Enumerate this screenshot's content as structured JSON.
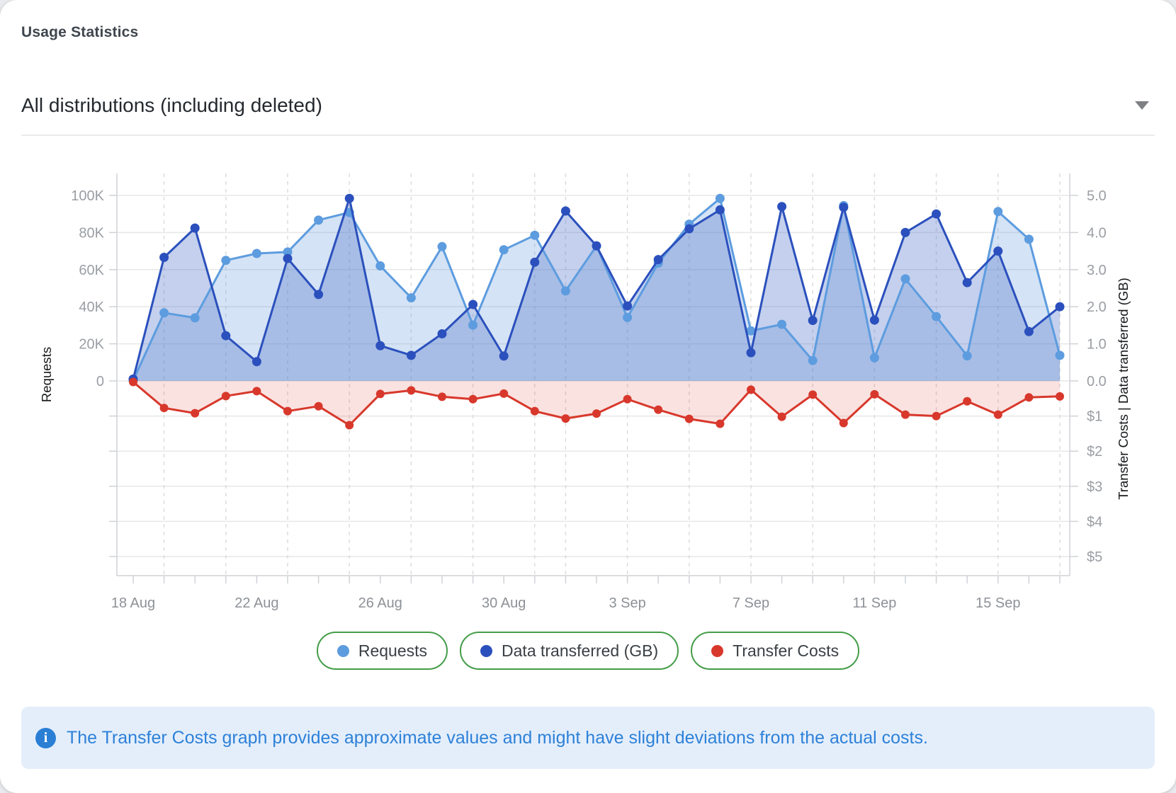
{
  "header": {
    "title": "Usage Statistics",
    "distribution_filter": {
      "value": "All distributions (including deleted)"
    }
  },
  "chart_data": {
    "type": "line",
    "x": [
      "18 Aug",
      "19 Aug",
      "20 Aug",
      "21 Aug",
      "22 Aug",
      "23 Aug",
      "24 Aug",
      "25 Aug",
      "26 Aug",
      "27 Aug",
      "28 Aug",
      "29 Aug",
      "30 Aug",
      "31 Aug",
      "1 Sep",
      "2 Sep",
      "3 Sep",
      "4 Sep",
      "5 Sep",
      "6 Sep",
      "7 Sep",
      "8 Sep",
      "9 Sep",
      "10 Sep",
      "11 Sep",
      "12 Sep",
      "13 Sep",
      "14 Sep",
      "15 Sep",
      "16 Sep",
      "17 Sep"
    ],
    "x_tick_labels": [
      "18 Aug",
      "22 Aug",
      "26 Aug",
      "30 Aug",
      "3 Sep",
      "7 Sep",
      "11 Sep",
      "15 Sep"
    ],
    "series": [
      {
        "name": "Requests",
        "axis": "left",
        "color": "#5d9cdf",
        "fill": "rgba(100,155,220,0.28)",
        "values": [
          300,
          36700,
          34000,
          65000,
          68700,
          69500,
          86700,
          90800,
          62000,
          44800,
          72400,
          30100,
          70700,
          78500,
          48500,
          72800,
          34200,
          63500,
          84500,
          98400,
          27000,
          30500,
          11000,
          94500,
          12500,
          55000,
          34700,
          13500,
          91300,
          76400,
          13800
        ]
      },
      {
        "name": "Data transferred (GB)",
        "axis": "right_gb",
        "color": "#2b50bd",
        "fill": "rgba(70,110,200,0.32)",
        "values": [
          0.05,
          3.33,
          4.12,
          1.22,
          0.52,
          3.3,
          2.33,
          4.92,
          0.95,
          0.69,
          1.27,
          2.06,
          0.67,
          3.2,
          4.58,
          3.64,
          2.02,
          3.27,
          4.1,
          4.61,
          0.76,
          4.7,
          1.63,
          4.68,
          1.64,
          4.0,
          4.5,
          2.65,
          3.5,
          1.33,
          2.0
        ]
      },
      {
        "name": "Transfer Costs",
        "axis": "right_cost",
        "color": "#d8382c",
        "fill": "rgba(225,75,65,0.16)",
        "values": [
          0.03,
          0.77,
          0.92,
          0.43,
          0.29,
          0.86,
          0.72,
          1.26,
          0.37,
          0.27,
          0.45,
          0.52,
          0.36,
          0.86,
          1.07,
          0.93,
          0.52,
          0.82,
          1.08,
          1.22,
          0.25,
          1.02,
          0.39,
          1.2,
          0.38,
          0.96,
          1.0,
          0.58,
          0.96,
          0.47,
          0.44
        ]
      }
    ],
    "left_axis": {
      "title": "Requests",
      "ticks": [
        "100K",
        "80K",
        "60K",
        "40K",
        "20K",
        "0"
      ],
      "range": [
        0,
        100000
      ]
    },
    "right_axis": {
      "title": "Transfer Costs | Data transferred (GB)",
      "gb_ticks": [
        "5.0",
        "4.0",
        "3.0",
        "2.0",
        "1.0",
        "0.0"
      ],
      "gb_range": [
        0,
        5
      ],
      "cost_ticks": [
        "$1",
        "$2",
        "$3",
        "$4",
        "$5"
      ],
      "cost_range": [
        0,
        5
      ]
    },
    "grid": {
      "horizontal": true,
      "vertical_dashed": true
    },
    "legend_position": "bottom"
  },
  "legend": {
    "items": [
      {
        "label": "Requests",
        "color": "#5d9cdf"
      },
      {
        "label": "Data transferred (GB)",
        "color": "#2b50bd"
      },
      {
        "label": "Transfer Costs",
        "color": "#d8382c"
      }
    ]
  },
  "banner": {
    "icon": "info-icon",
    "icon_glyph": "i",
    "text": "The Transfer Costs graph provides approximate values and might have slight deviations from the actual costs.",
    "text_color": "#2d81d8",
    "bg_color": "#e4eefb"
  },
  "colors": {
    "grid_horizontal": "#e7e7e7",
    "grid_vertical": "#dcdcdc",
    "axis_line": "#cfd2d6",
    "tick_label": "#9a9ea3",
    "legend_border": "#449d48"
  }
}
